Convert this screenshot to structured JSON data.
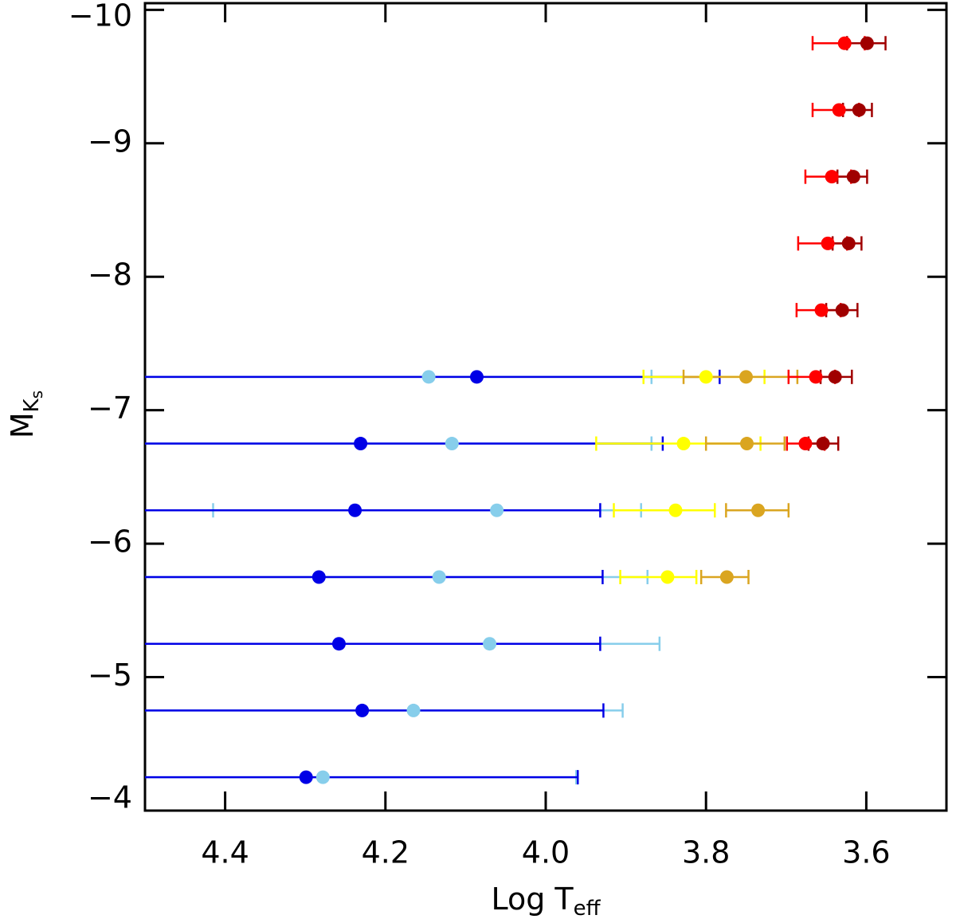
{
  "chart_data": {
    "type": "scatter",
    "xlabel": "Log T",
    "xlabel_sub": "eff",
    "ylabel": "M",
    "ylabel_sub": "K",
    "ylabel_subsub": "s",
    "xlim": [
      4.5,
      3.5
    ],
    "ylim": [
      -4.0,
      -10.05
    ],
    "xticks": [
      4.4,
      4.2,
      {
        "value": 4,
        "label": "4.0"
      },
      3.8,
      3.6
    ],
    "yticks": [
      {
        "value": -10,
        "label": "−10"
      },
      {
        "value": -9,
        "label": "−9"
      },
      {
        "value": -8,
        "label": "−8"
      },
      {
        "value": -7,
        "label": "−7"
      },
      {
        "value": -6,
        "label": "−6"
      },
      {
        "value": -5,
        "label": "−5"
      },
      {
        "value": -4,
        "label": "−4"
      }
    ],
    "series": [
      {
        "color": "#87ceeb",
        "y": [
          -7.25,
          -6.75,
          -6.25,
          -5.75,
          -5.25,
          -4.75,
          -4.25
        ],
        "x": [
          4.146,
          4.117,
          4.061,
          4.133,
          4.07,
          4.165,
          4.278
        ],
        "xlow": [
          null,
          null,
          4.415,
          null,
          null,
          null,
          null
        ],
        "xhigh": [
          3.868,
          3.868,
          3.881,
          3.873,
          3.858,
          3.904,
          3.962
        ]
      },
      {
        "color": "#0000e6",
        "y": [
          -7.25,
          -6.75,
          -6.25,
          -5.75,
          -5.25,
          -4.75,
          -4.25
        ],
        "x": [
          4.086,
          4.231,
          4.238,
          4.283,
          4.258,
          4.229,
          4.299
        ],
        "xlow": [
          null,
          null,
          null,
          null,
          null,
          null,
          null
        ],
        "xhigh": [
          3.783,
          3.854,
          3.932,
          3.929,
          3.932,
          3.928,
          3.96
        ]
      },
      {
        "color": "#ffff00",
        "y": [
          -7.25,
          -6.75,
          -6.25,
          -5.75
        ],
        "x": [
          3.8,
          3.828,
          3.838,
          3.848
        ],
        "xlow": [
          3.878,
          3.937,
          3.915,
          3.907
        ],
        "xhigh": [
          3.727,
          3.732,
          3.789,
          3.812
        ]
      },
      {
        "color": "#daa520",
        "y": [
          -7.25,
          -6.75,
          -6.25,
          -5.75
        ],
        "x": [
          3.75,
          3.749,
          3.735,
          3.774
        ],
        "xlow": [
          3.828,
          3.8,
          3.775,
          3.806
        ],
        "xhigh": [
          3.686,
          3.702,
          3.697,
          3.747
        ]
      },
      {
        "color": "#ff0000",
        "y": [
          -9.75,
          -9.25,
          -8.75,
          -8.25,
          -7.75,
          -7.25,
          -6.75
        ],
        "x": [
          3.627,
          3.634,
          3.643,
          3.648,
          3.656,
          3.663,
          3.676
        ],
        "xlow": [
          3.667,
          3.667,
          3.676,
          3.685,
          3.687,
          3.697,
          3.699
        ],
        "xhigh": [
          3.602,
          3.609,
          3.619,
          3.624,
          3.632,
          3.639,
          3.652
        ]
      },
      {
        "color": "#a00000",
        "y": [
          -9.75,
          -9.25,
          -8.75,
          -8.25,
          -7.75,
          -7.25,
          -6.75
        ],
        "x": [
          3.599,
          3.609,
          3.616,
          3.622,
          3.63,
          3.639,
          3.654
        ],
        "xlow": [
          3.624,
          3.629,
          3.636,
          3.642,
          3.65,
          3.657,
          3.672
        ],
        "xhigh": [
          3.576,
          3.593,
          3.599,
          3.606,
          3.611,
          3.618,
          3.635
        ]
      }
    ]
  }
}
